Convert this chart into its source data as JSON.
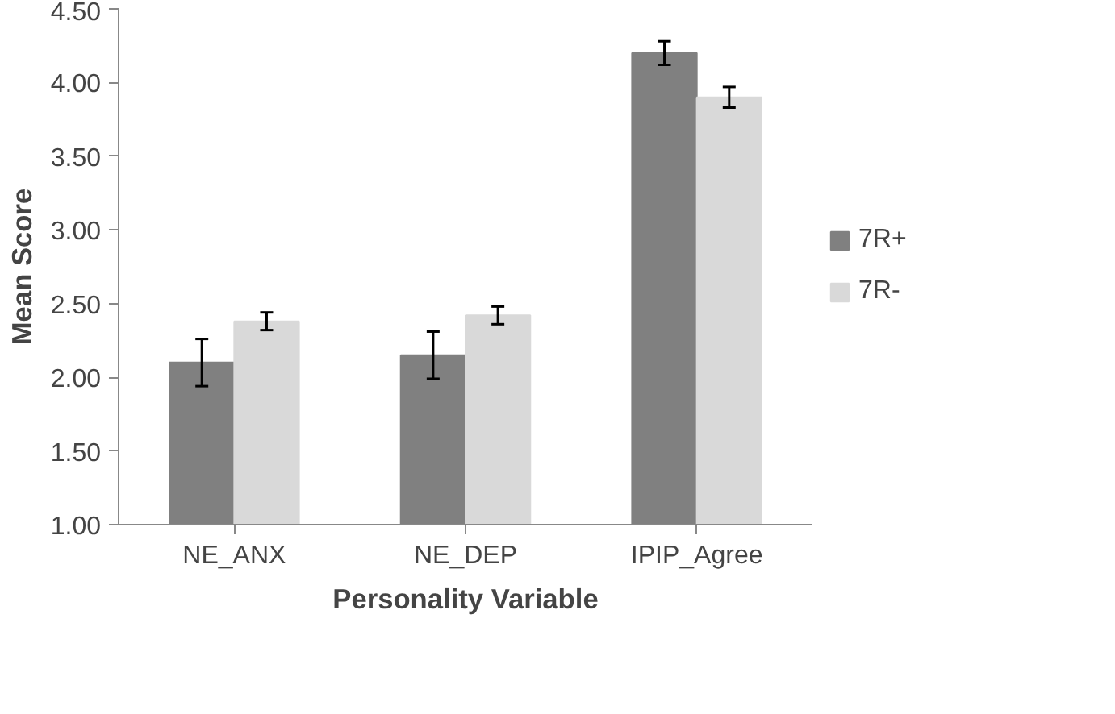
{
  "chart_data": {
    "type": "bar",
    "xlabel": "Personality Variable",
    "ylabel": "Mean Score",
    "categories": [
      "NE_ANX",
      "NE_DEP",
      "IPIP_Agree"
    ],
    "series": [
      {
        "name": "7R+",
        "color": "#808080",
        "values": [
          2.1,
          2.15,
          4.2
        ],
        "errors": [
          0.16,
          0.16,
          0.08
        ]
      },
      {
        "name": "7R-",
        "color": "#d9d9d9",
        "values": [
          2.38,
          2.42,
          3.9
        ],
        "errors": [
          0.06,
          0.06,
          0.07
        ]
      }
    ],
    "ylim": [
      1.0,
      4.5
    ],
    "yticks": [
      {
        "value": 1.0,
        "label": "1.00"
      },
      {
        "value": 1.5,
        "label": "1.50"
      },
      {
        "value": 2.0,
        "label": "2.00"
      },
      {
        "value": 2.5,
        "label": "2.50"
      },
      {
        "value": 3.0,
        "label": "3.00"
      },
      {
        "value": 3.5,
        "label": "3.50"
      },
      {
        "value": 4.0,
        "label": "4.00"
      },
      {
        "value": 4.5,
        "label": "4.50"
      }
    ],
    "grid": false,
    "legend": "right"
  }
}
